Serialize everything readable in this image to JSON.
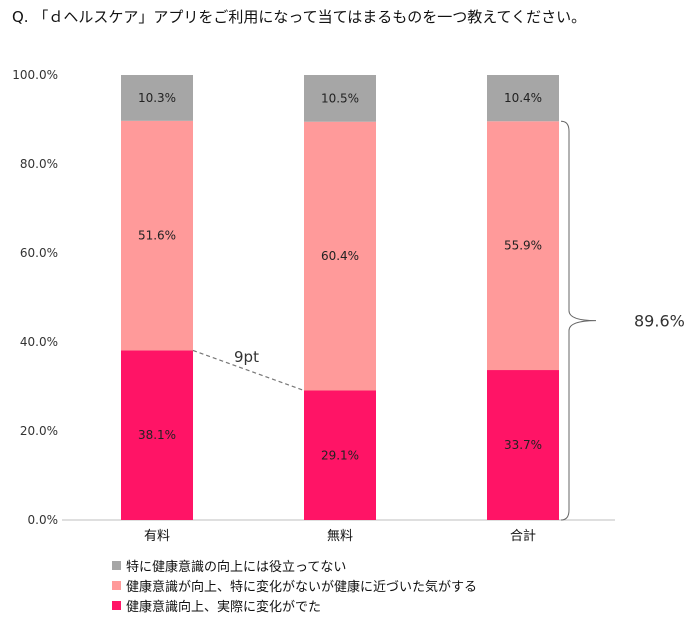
{
  "title": "Q. 「ｄヘルスケア」アプリをご利用になって当てはまるものを一つ教えてください。",
  "chart_data": {
    "type": "bar",
    "stacked": true,
    "categories": [
      "有料",
      "無料",
      "合計"
    ],
    "ylim": [
      0,
      100
    ],
    "yticks": [
      "0.0%",
      "20.0%",
      "40.0%",
      "60.0%",
      "80.0%",
      "100.0%"
    ],
    "series": [
      {
        "name": "健康意識向上、実際に変化がでた",
        "color": "#FF1466",
        "values": [
          38.1,
          29.1,
          33.7
        ],
        "labels": [
          "38.1%",
          "29.1%",
          "33.7%"
        ]
      },
      {
        "name": "健康意識が向上、特に変化がないが健康に近づいた気がする",
        "color": "#FF9A9A",
        "values": [
          51.6,
          60.4,
          55.9
        ],
        "labels": [
          "51.6%",
          "60.4%",
          "55.9%"
        ]
      },
      {
        "name": "特に健康意識の向上には役立ってない",
        "color": "#A6A6A6",
        "values": [
          10.3,
          10.5,
          10.4
        ],
        "labels": [
          "10.3%",
          "10.5%",
          "10.4%"
        ]
      }
    ],
    "legend_order": [
      2,
      1,
      0
    ],
    "annotations": {
      "diff_label": "9pt",
      "total_label": "89.6%"
    }
  }
}
